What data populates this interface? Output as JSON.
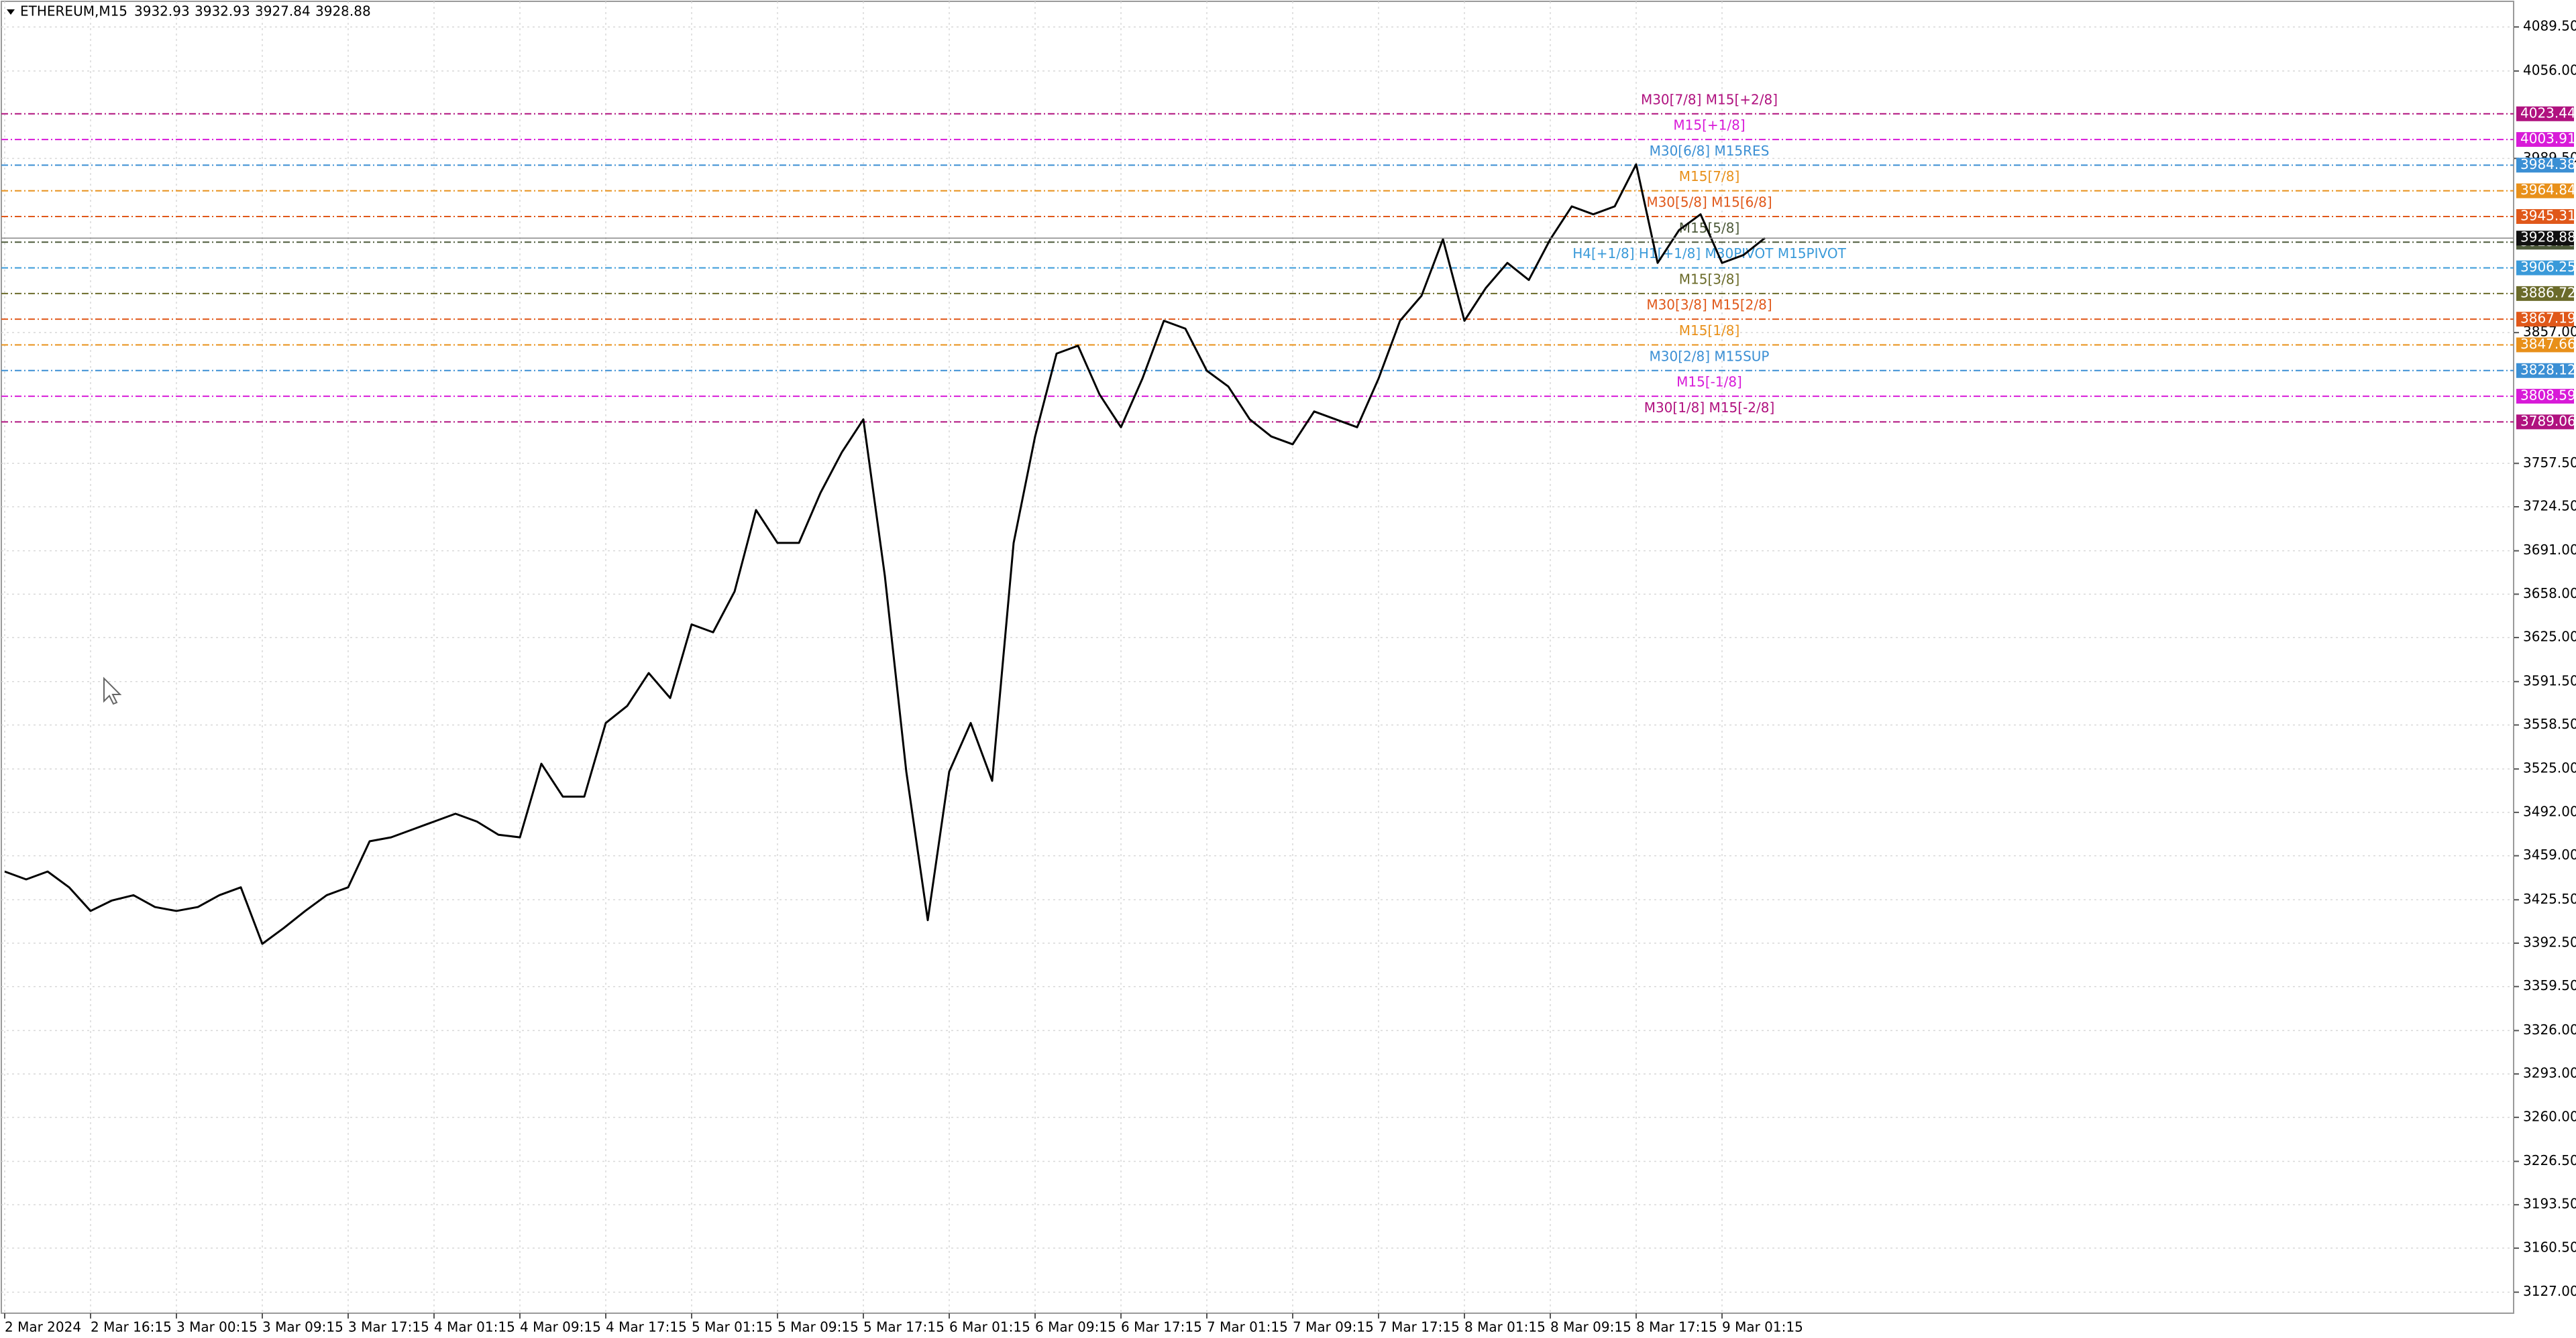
{
  "chart_data": {
    "type": "line",
    "title": "ETHEREUM,M15",
    "header_values": [
      3932.93,
      3932.93,
      3927.84,
      3928.88
    ],
    "categories": [
      "2 Mar 2024",
      null,
      null,
      null,
      "2 Mar 16:15",
      null,
      null,
      null,
      "3 Mar 00:15",
      null,
      null,
      null,
      "3 Mar 09:15",
      null,
      null,
      null,
      "3 Mar 17:15",
      null,
      null,
      null,
      "4 Mar 01:15",
      null,
      null,
      null,
      "4 Mar 09:15",
      null,
      null,
      null,
      "4 Mar 17:15",
      null,
      null,
      null,
      "5 Mar 01:15",
      null,
      null,
      null,
      "5 Mar 09:15",
      null,
      null,
      null,
      "5 Mar 17:15",
      null,
      null,
      null,
      "6 Mar 01:15",
      null,
      null,
      null,
      "6 Mar 09:15",
      null,
      null,
      null,
      "6 Mar 17:15",
      null,
      null,
      null,
      "7 Mar 01:15",
      null,
      null,
      null,
      "7 Mar 09:15",
      null,
      null,
      null,
      "7 Mar 17:15",
      null,
      null,
      null,
      "8 Mar 01:15",
      null,
      null,
      null,
      "8 Mar 09:15",
      null,
      null,
      null,
      "8 Mar 17:15",
      null,
      null,
      null,
      "9 Mar 01:15",
      null,
      null
    ],
    "values": [
      3447,
      3441,
      3447,
      3435,
      3417,
      3425,
      3429,
      3420,
      3417,
      3420,
      3429,
      3435,
      3392,
      3404,
      3417,
      3429,
      3435,
      3470,
      3473,
      3479,
      3485,
      3491,
      3485,
      3475,
      3473,
      3529,
      3504,
      3504,
      3560,
      3573,
      3598,
      3579,
      3635,
      3629,
      3660,
      3722,
      3697,
      3697,
      3735,
      3766,
      3791,
      3672,
      3523,
      3410,
      3523,
      3560,
      3516,
      3697,
      3778,
      3841,
      3847,
      3810,
      3785,
      3822,
      3866,
      3860,
      3828,
      3816,
      3791,
      3778,
      3772,
      3797,
      3791,
      3785,
      3822,
      3866,
      3885,
      3928,
      3866,
      3891,
      3910,
      3897,
      3928,
      3953,
      3947,
      3953,
      3985,
      3910,
      3935,
      3947,
      3910,
      3916,
      3929
    ],
    "color": "#000000",
    "ylim": [
      3111,
      4109
    ],
    "yticks": [
      {
        "value": 4089.5,
        "label": "4089.50"
      },
      {
        "value": 4056,
        "label": "4056.00"
      },
      {
        "value": 3989.5,
        "label": "3989.50"
      },
      {
        "value": 3857,
        "label": "3857.00"
      },
      {
        "value": 3757.5,
        "label": "3757.50"
      },
      {
        "value": 3724.5,
        "label": "3724.50"
      },
      {
        "value": 3691,
        "label": "3691.00"
      },
      {
        "value": 3658,
        "label": "3658.00"
      },
      {
        "value": 3625,
        "label": "3625.00"
      },
      {
        "value": 3591.5,
        "label": "3591.50"
      },
      {
        "value": 3558.5,
        "label": "3558.50"
      },
      {
        "value": 3525,
        "label": "3525.00"
      },
      {
        "value": 3492,
        "label": "3492.00"
      },
      {
        "value": 3459,
        "label": "3459.00"
      },
      {
        "value": 3425.5,
        "label": "3425.50"
      },
      {
        "value": 3392.5,
        "label": "3392.50"
      },
      {
        "value": 3359.5,
        "label": "3359.50"
      },
      {
        "value": 3326,
        "label": "3326.00"
      },
      {
        "value": 3293,
        "label": "3293.00"
      },
      {
        "value": 3260,
        "label": "3260.00"
      },
      {
        "value": 3226.5,
        "label": "3226.50"
      },
      {
        "value": 3193.5,
        "label": "3193.50"
      },
      {
        "value": 3160.5,
        "label": "3160.50"
      },
      {
        "value": 3127,
        "label": "3127.00"
      }
    ],
    "grid": true,
    "levels": [
      {
        "value": 4023.44,
        "label": "M30[7/8] M15[+2/8]",
        "color": "#b0127f"
      },
      {
        "value": 4003.91,
        "label": "M15[+1/8]",
        "color": "#d81ad8"
      },
      {
        "value": 3984.38,
        "label": "M30[6/8] M15RES",
        "color": "#3b8fd4"
      },
      {
        "value": 3964.84,
        "label": "M15[7/8]",
        "color": "#e8901a"
      },
      {
        "value": 3945.31,
        "label": "M30[5/8] M15[6/8]",
        "color": "#e0581a"
      },
      {
        "value": 3925.78,
        "label": "M15[5/8]",
        "color": "#4d5a3a"
      },
      {
        "value": 3906.25,
        "label": "H4[+1/8] H1[+1/8] M30PIVOT M15PIVOT",
        "color": "#3a9ad9"
      },
      {
        "value": 3886.72,
        "label": "M15[3/8]",
        "color": "#6b6b2a"
      },
      {
        "value": 3867.19,
        "label": "M30[3/8] M15[2/8]",
        "color": "#e0581a"
      },
      {
        "value": 3847.66,
        "label": "M15[1/8]",
        "color": "#e8901a"
      },
      {
        "value": 3828.12,
        "label": "M30[2/8] M15SUP",
        "color": "#3b8fd4"
      },
      {
        "value": 3808.59,
        "label": "M15[-1/8]",
        "color": "#d81ad8"
      },
      {
        "value": 3789.06,
        "label": "M30[1/8] M15[-2/8]",
        "color": "#b0127f"
      }
    ]
  }
}
